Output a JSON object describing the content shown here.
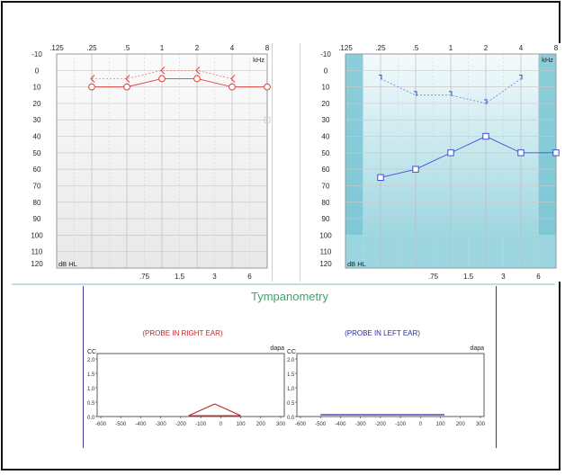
{
  "audiogram": {
    "freq_labels_top": [
      ".125",
      ".25",
      ".5",
      "1",
      "2",
      "4",
      "8"
    ],
    "freq_labels_bottom": [
      ".75",
      "1.5",
      "3",
      "6"
    ],
    "db_labels": [
      "-10",
      "0",
      "10",
      "20",
      "30",
      "40",
      "50",
      "60",
      "70",
      "80",
      "90",
      "100",
      "110",
      "120"
    ],
    "khz_label": "kHz",
    "dbhl_label": "dB HL"
  },
  "right_ear": {
    "color": "#e0403a",
    "air_conduction": [
      {
        "f": ".25",
        "db": 10
      },
      {
        "f": ".5",
        "db": 10
      },
      {
        "f": "1",
        "db": 5
      },
      {
        "f": "2",
        "db": 5
      },
      {
        "f": "4",
        "db": 10
      },
      {
        "f": "8",
        "db": 10
      }
    ],
    "bone_conduction": [
      {
        "f": ".25",
        "db": 5
      },
      {
        "f": ".5",
        "db": 5
      },
      {
        "f": "1",
        "db": 0
      },
      {
        "f": "2",
        "db": 0
      },
      {
        "f": "4",
        "db": 5
      }
    ]
  },
  "left_ear": {
    "color": "#3a4fd9",
    "air_conduction": [
      {
        "f": ".25",
        "db": 65
      },
      {
        "f": ".5",
        "db": 60
      },
      {
        "f": "1",
        "db": 50
      },
      {
        "f": "2",
        "db": 40
      },
      {
        "f": "4",
        "db": 50
      },
      {
        "f": "8",
        "db": 50
      }
    ],
    "bone_conduction": [
      {
        "f": ".25",
        "db": 5
      },
      {
        "f": ".5",
        "db": 15
      },
      {
        "f": "1",
        "db": 15
      },
      {
        "f": "2",
        "db": 20
      },
      {
        "f": "4",
        "db": 5
      }
    ]
  },
  "tympanometry": {
    "title": "Tympanometry",
    "right_label": "(PROBE IN RIGHT EAR)",
    "left_label": "(PROBE IN LEFT EAR)",
    "right_color": "#c0282a",
    "left_color": "#2a2aa6",
    "unit_y": "CC",
    "unit_x": "dapa",
    "y_ticks": [
      "2.0",
      "1.5",
      "1.0",
      "0.5",
      "0.0"
    ],
    "x_ticks": [
      "-600",
      "-500",
      "-400",
      "-300",
      "-200",
      "-100",
      "0",
      "100",
      "200",
      "300"
    ]
  }
}
